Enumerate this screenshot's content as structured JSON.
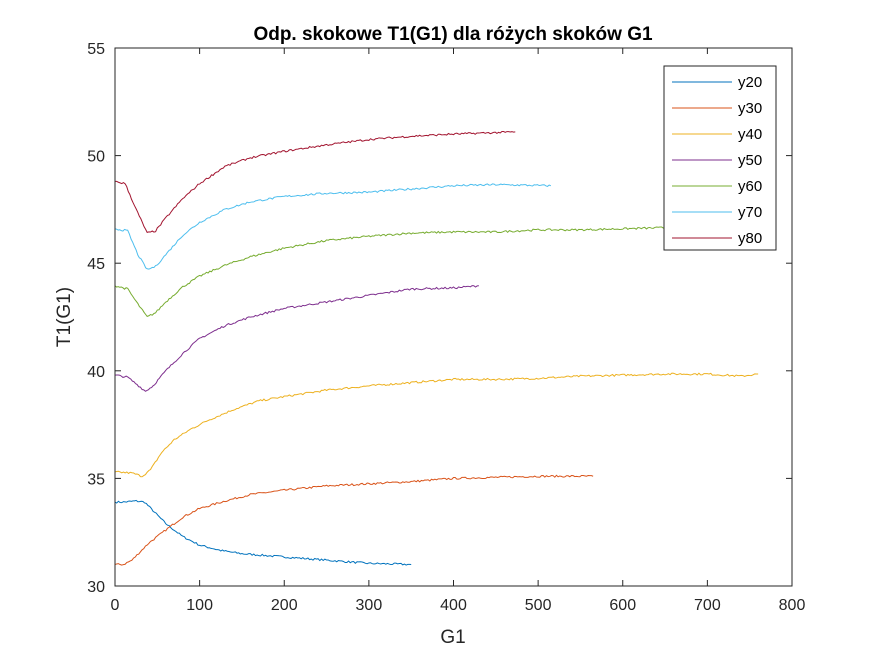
{
  "chart_data": {
    "type": "line",
    "title": "Odp. skokowe T1(G1) dla różych skoków G1",
    "xlabel": "G1",
    "ylabel": "T1(G1)",
    "xlim": [
      0,
      800
    ],
    "ylim": [
      30,
      55
    ],
    "xticks": [
      0,
      100,
      200,
      300,
      400,
      500,
      600,
      700,
      800
    ],
    "yticks": [
      30,
      35,
      40,
      45,
      50,
      55
    ],
    "grid": false,
    "legend_position": "top-right",
    "series": [
      {
        "name": "y20",
        "color": "#0072BD",
        "points": [
          [
            0,
            33.9
          ],
          [
            10,
            33.9
          ],
          [
            25,
            33.95
          ],
          [
            35,
            33.9
          ],
          [
            45,
            33.5
          ],
          [
            60,
            32.9
          ],
          [
            80,
            32.3
          ],
          [
            100,
            31.9
          ],
          [
            125,
            31.65
          ],
          [
            150,
            31.5
          ],
          [
            200,
            31.35
          ],
          [
            250,
            31.2
          ],
          [
            300,
            31.05
          ],
          [
            350,
            31.0
          ]
        ]
      },
      {
        "name": "y30",
        "color": "#D95319",
        "points": [
          [
            0,
            31.0
          ],
          [
            10,
            31.0
          ],
          [
            20,
            31.2
          ],
          [
            30,
            31.6
          ],
          [
            40,
            32.0
          ],
          [
            60,
            32.6
          ],
          [
            80,
            33.2
          ],
          [
            100,
            33.6
          ],
          [
            130,
            33.95
          ],
          [
            160,
            34.25
          ],
          [
            200,
            34.45
          ],
          [
            250,
            34.65
          ],
          [
            300,
            34.75
          ],
          [
            350,
            34.85
          ],
          [
            400,
            35.0
          ],
          [
            450,
            35.05
          ],
          [
            500,
            35.1
          ],
          [
            565,
            35.1
          ]
        ]
      },
      {
        "name": "y40",
        "color": "#EDB120",
        "points": [
          [
            0,
            35.3
          ],
          [
            20,
            35.25
          ],
          [
            32,
            35.1
          ],
          [
            42,
            35.4
          ],
          [
            55,
            36.2
          ],
          [
            70,
            36.8
          ],
          [
            90,
            37.3
          ],
          [
            110,
            37.7
          ],
          [
            140,
            38.2
          ],
          [
            170,
            38.6
          ],
          [
            200,
            38.8
          ],
          [
            250,
            39.1
          ],
          [
            300,
            39.3
          ],
          [
            350,
            39.45
          ],
          [
            400,
            39.6
          ],
          [
            450,
            39.6
          ],
          [
            500,
            39.65
          ],
          [
            550,
            39.75
          ],
          [
            600,
            39.8
          ],
          [
            650,
            39.85
          ],
          [
            700,
            39.85
          ],
          [
            740,
            39.75
          ],
          [
            760,
            39.85
          ]
        ]
      },
      {
        "name": "y50",
        "color": "#7E2F8E",
        "points": [
          [
            0,
            39.8
          ],
          [
            15,
            39.7
          ],
          [
            28,
            39.3
          ],
          [
            36,
            39.05
          ],
          [
            45,
            39.3
          ],
          [
            60,
            40.0
          ],
          [
            80,
            40.8
          ],
          [
            100,
            41.5
          ],
          [
            130,
            42.1
          ],
          [
            160,
            42.5
          ],
          [
            200,
            42.9
          ],
          [
            250,
            43.2
          ],
          [
            300,
            43.5
          ],
          [
            350,
            43.8
          ],
          [
            400,
            43.85
          ],
          [
            430,
            43.95
          ]
        ]
      },
      {
        "name": "y60",
        "color": "#77AC30",
        "points": [
          [
            0,
            43.95
          ],
          [
            15,
            43.8
          ],
          [
            27,
            43.1
          ],
          [
            38,
            42.5
          ],
          [
            48,
            42.7
          ],
          [
            60,
            43.2
          ],
          [
            80,
            43.9
          ],
          [
            100,
            44.4
          ],
          [
            130,
            44.9
          ],
          [
            160,
            45.3
          ],
          [
            200,
            45.7
          ],
          [
            250,
            46.05
          ],
          [
            300,
            46.25
          ],
          [
            350,
            46.4
          ],
          [
            400,
            46.45
          ],
          [
            450,
            46.45
          ],
          [
            500,
            46.55
          ],
          [
            550,
            46.55
          ],
          [
            600,
            46.6
          ],
          [
            650,
            46.65
          ]
        ]
      },
      {
        "name": "y70",
        "color": "#4DBEEE",
        "points": [
          [
            0,
            46.6
          ],
          [
            15,
            46.5
          ],
          [
            27,
            45.4
          ],
          [
            38,
            44.7
          ],
          [
            48,
            44.85
          ],
          [
            60,
            45.4
          ],
          [
            80,
            46.3
          ],
          [
            100,
            46.9
          ],
          [
            130,
            47.5
          ],
          [
            160,
            47.85
          ],
          [
            200,
            48.1
          ],
          [
            250,
            48.25
          ],
          [
            300,
            48.3
          ],
          [
            350,
            48.45
          ],
          [
            400,
            48.6
          ],
          [
            450,
            48.65
          ],
          [
            515,
            48.6
          ]
        ]
      },
      {
        "name": "y80",
        "color": "#A2142F",
        "points": [
          [
            0,
            48.8
          ],
          [
            12,
            48.7
          ],
          [
            25,
            47.5
          ],
          [
            38,
            46.4
          ],
          [
            48,
            46.5
          ],
          [
            60,
            47.1
          ],
          [
            80,
            48.0
          ],
          [
            100,
            48.7
          ],
          [
            130,
            49.5
          ],
          [
            160,
            49.9
          ],
          [
            200,
            50.2
          ],
          [
            250,
            50.5
          ],
          [
            300,
            50.75
          ],
          [
            350,
            50.9
          ],
          [
            400,
            51.0
          ],
          [
            473,
            51.1
          ]
        ]
      }
    ]
  }
}
